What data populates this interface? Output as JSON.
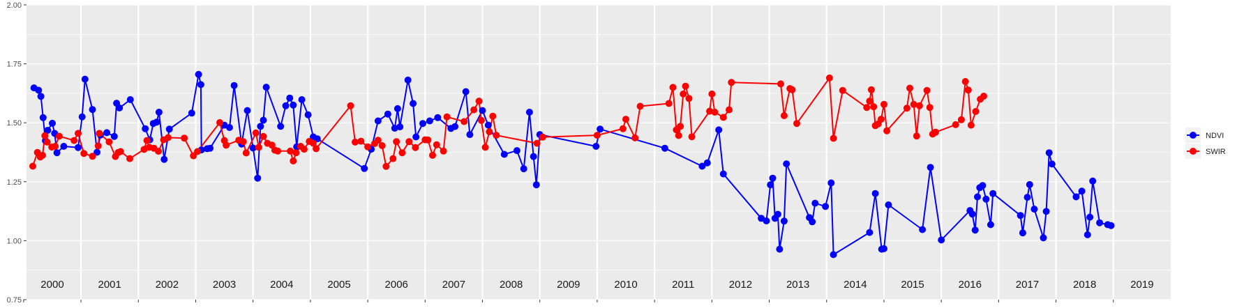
{
  "chart_data": {
    "type": "line",
    "title": "",
    "xlabel": "",
    "ylabel": "",
    "ylim": [
      0.75,
      2.0
    ],
    "y_ticks": [
      "0.75",
      "1.00",
      "1.25",
      "1.50",
      "1.75",
      "2.00"
    ],
    "years": [
      "2000",
      "2001",
      "2002",
      "2003",
      "2004",
      "2005",
      "2006",
      "2007",
      "2008",
      "2009",
      "2010",
      "2011",
      "2012",
      "2013",
      "2014",
      "2015",
      "2016",
      "2017",
      "2018",
      "2019"
    ],
    "x_range": [
      1999.55,
      2019.5
    ],
    "grid": true,
    "background": "#EBEBEB",
    "legend_position": "right",
    "series": [
      {
        "name": "NDVI",
        "color": "#0000FF",
        "points": [
          [
            1999.68,
            1.648
          ],
          [
            1999.76,
            1.638
          ],
          [
            1999.8,
            1.612
          ],
          [
            1999.84,
            1.522
          ],
          [
            1999.88,
            1.424
          ],
          [
            1999.92,
            1.468
          ],
          [
            2000.0,
            1.498
          ],
          [
            2000.04,
            1.455
          ],
          [
            2000.08,
            1.373
          ],
          [
            2000.2,
            1.4
          ],
          [
            2000.45,
            1.395
          ],
          [
            2000.52,
            1.525
          ],
          [
            2000.57,
            1.685
          ],
          [
            2000.7,
            1.556
          ],
          [
            2000.78,
            1.375
          ],
          [
            2000.84,
            1.448
          ],
          [
            2000.95,
            1.458
          ],
          [
            2001.08,
            1.442
          ],
          [
            2001.12,
            1.583
          ],
          [
            2001.17,
            1.563
          ],
          [
            2001.36,
            1.598
          ],
          [
            2001.62,
            1.475
          ],
          [
            2001.7,
            1.428
          ],
          [
            2001.76,
            1.497
          ],
          [
            2001.82,
            1.503
          ],
          [
            2001.86,
            1.545
          ],
          [
            2001.95,
            1.345
          ],
          [
            2002.04,
            1.473
          ],
          [
            2002.43,
            1.541
          ],
          [
            2002.55,
            1.705
          ],
          [
            2002.59,
            1.662
          ],
          [
            2002.6,
            1.385
          ],
          [
            2002.7,
            1.39
          ],
          [
            2002.75,
            1.392
          ],
          [
            2003.0,
            1.49
          ],
          [
            2003.09,
            1.48
          ],
          [
            2003.17,
            1.658
          ],
          [
            2003.3,
            1.41
          ],
          [
            2003.4,
            1.552
          ],
          [
            2003.5,
            1.393
          ],
          [
            2003.58,
            1.265
          ],
          [
            2003.63,
            1.485
          ],
          [
            2003.68,
            1.511
          ],
          [
            2003.73,
            1.651
          ],
          [
            2003.98,
            1.485
          ],
          [
            2004.07,
            1.572
          ],
          [
            2004.14,
            1.605
          ],
          [
            2004.2,
            1.575
          ],
          [
            2004.26,
            1.398
          ],
          [
            2004.35,
            1.598
          ],
          [
            2004.46,
            1.534
          ],
          [
            2004.55,
            1.44
          ],
          [
            2004.62,
            1.432
          ],
          [
            2005.44,
            1.306
          ],
          [
            2005.56,
            1.388
          ],
          [
            2005.68,
            1.508
          ],
          [
            2005.85,
            1.537
          ],
          [
            2005.97,
            1.477
          ],
          [
            2006.02,
            1.56
          ],
          [
            2006.06,
            1.483
          ],
          [
            2006.2,
            1.681
          ],
          [
            2006.29,
            1.582
          ],
          [
            2006.34,
            1.44
          ],
          [
            2006.46,
            1.497
          ],
          [
            2006.58,
            1.508
          ],
          [
            2006.72,
            1.522
          ],
          [
            2006.95,
            1.476
          ],
          [
            2007.02,
            1.484
          ],
          [
            2007.21,
            1.632
          ],
          [
            2007.28,
            1.45
          ],
          [
            2007.5,
            1.552
          ],
          [
            2007.6,
            1.49
          ],
          [
            2007.88,
            1.366
          ],
          [
            2008.1,
            1.382
          ],
          [
            2008.22,
            1.305
          ],
          [
            2008.32,
            1.545
          ],
          [
            2008.39,
            1.357
          ],
          [
            2008.44,
            1.237
          ],
          [
            2008.5,
            1.45
          ],
          [
            2009.48,
            1.4
          ],
          [
            2009.55,
            1.473
          ],
          [
            2010.68,
            1.392
          ],
          [
            2011.33,
            1.316
          ],
          [
            2011.42,
            1.33
          ],
          [
            2011.62,
            1.47
          ],
          [
            2011.7,
            1.283
          ],
          [
            2012.36,
            1.095
          ],
          [
            2012.45,
            1.084
          ],
          [
            2012.52,
            1.237
          ],
          [
            2012.56,
            1.265
          ],
          [
            2012.6,
            1.095
          ],
          [
            2012.65,
            1.112
          ],
          [
            2012.68,
            0.964
          ],
          [
            2012.76,
            1.083
          ],
          [
            2012.8,
            1.326
          ],
          [
            2013.2,
            1.098
          ],
          [
            2013.25,
            1.08
          ],
          [
            2013.3,
            1.159
          ],
          [
            2013.48,
            1.145
          ],
          [
            2013.58,
            1.245
          ],
          [
            2013.62,
            0.941
          ],
          [
            2014.25,
            1.035
          ],
          [
            2014.35,
            1.2
          ],
          [
            2014.46,
            0.964
          ],
          [
            2014.5,
            0.966
          ],
          [
            2014.58,
            1.152
          ],
          [
            2015.17,
            1.047
          ],
          [
            2015.31,
            1.311
          ],
          [
            2015.5,
            1.003
          ],
          [
            2016.0,
            1.128
          ],
          [
            2016.04,
            1.113
          ],
          [
            2016.09,
            1.045
          ],
          [
            2016.13,
            1.186
          ],
          [
            2016.17,
            1.225
          ],
          [
            2016.22,
            1.234
          ],
          [
            2016.28,
            1.176
          ],
          [
            2016.36,
            1.068
          ],
          [
            2016.4,
            1.2
          ],
          [
            2016.88,
            1.107
          ],
          [
            2016.92,
            1.033
          ],
          [
            2017.0,
            1.184
          ],
          [
            2017.04,
            1.238
          ],
          [
            2017.12,
            1.134
          ],
          [
            2017.28,
            1.012
          ],
          [
            2017.33,
            1.124
          ],
          [
            2017.38,
            1.373
          ],
          [
            2017.43,
            1.325
          ],
          [
            2017.85,
            1.186
          ],
          [
            2017.95,
            1.21
          ],
          [
            2018.05,
            1.025
          ],
          [
            2018.09,
            1.1
          ],
          [
            2018.14,
            1.253
          ],
          [
            2018.26,
            1.076
          ],
          [
            2018.4,
            1.068
          ],
          [
            2018.46,
            1.064
          ]
        ]
      },
      {
        "name": "SWIR",
        "color": "#FF0000",
        "points": [
          [
            1999.66,
            1.316
          ],
          [
            1999.74,
            1.374
          ],
          [
            1999.79,
            1.355
          ],
          [
            1999.83,
            1.362
          ],
          [
            1999.87,
            1.445
          ],
          [
            1999.91,
            1.418
          ],
          [
            1999.99,
            1.397
          ],
          [
            2000.05,
            1.4
          ],
          [
            2000.12,
            1.443
          ],
          [
            2000.38,
            1.425
          ],
          [
            2000.45,
            1.455
          ],
          [
            2000.55,
            1.37
          ],
          [
            2000.7,
            1.358
          ],
          [
            2000.8,
            1.402
          ],
          [
            2000.82,
            1.455
          ],
          [
            2000.99,
            1.419
          ],
          [
            2001.1,
            1.357
          ],
          [
            2001.15,
            1.374
          ],
          [
            2001.19,
            1.378
          ],
          [
            2001.35,
            1.348
          ],
          [
            2001.6,
            1.387
          ],
          [
            2001.65,
            1.425
          ],
          [
            2001.69,
            1.396
          ],
          [
            2001.77,
            1.392
          ],
          [
            2001.85,
            1.379
          ],
          [
            2001.94,
            1.428
          ],
          [
            2002.02,
            1.437
          ],
          [
            2002.3,
            1.435
          ],
          [
            2002.46,
            1.36
          ],
          [
            2002.53,
            1.378
          ],
          [
            2002.92,
            1.501
          ],
          [
            2003.0,
            1.425
          ],
          [
            2003.03,
            1.405
          ],
          [
            2003.25,
            1.426
          ],
          [
            2003.33,
            1.42
          ],
          [
            2003.38,
            1.372
          ],
          [
            2003.55,
            1.457
          ],
          [
            2003.6,
            1.396
          ],
          [
            2003.68,
            1.442
          ],
          [
            2003.75,
            1.413
          ],
          [
            2003.83,
            1.405
          ],
          [
            2003.88,
            1.384
          ],
          [
            2003.93,
            1.38
          ],
          [
            2004.15,
            1.38
          ],
          [
            2004.2,
            1.338
          ],
          [
            2004.25,
            1.373
          ],
          [
            2004.33,
            1.4
          ],
          [
            2004.39,
            1.388
          ],
          [
            2004.48,
            1.421
          ],
          [
            2004.55,
            1.413
          ],
          [
            2004.6,
            1.39
          ],
          [
            2005.2,
            1.572
          ],
          [
            2005.28,
            1.418
          ],
          [
            2005.38,
            1.422
          ],
          [
            2005.5,
            1.398
          ],
          [
            2005.62,
            1.412
          ],
          [
            2005.68,
            1.426
          ],
          [
            2005.75,
            1.403
          ],
          [
            2005.82,
            1.315
          ],
          [
            2005.94,
            1.348
          ],
          [
            2006.0,
            1.42
          ],
          [
            2006.1,
            1.373
          ],
          [
            2006.22,
            1.42
          ],
          [
            2006.33,
            1.395
          ],
          [
            2006.5,
            1.428
          ],
          [
            2006.55,
            1.427
          ],
          [
            2006.63,
            1.362
          ],
          [
            2006.7,
            1.407
          ],
          [
            2006.82,
            1.38
          ],
          [
            2006.88,
            1.525
          ],
          [
            2007.18,
            1.505
          ],
          [
            2007.35,
            1.555
          ],
          [
            2007.44,
            1.592
          ],
          [
            2007.48,
            1.51
          ],
          [
            2007.55,
            1.396
          ],
          [
            2007.62,
            1.462
          ],
          [
            2007.68,
            1.528
          ],
          [
            2007.74,
            1.447
          ],
          [
            2008.45,
            1.413
          ],
          [
            2008.55,
            1.439
          ],
          [
            2009.5,
            1.447
          ],
          [
            2009.95,
            1.475
          ],
          [
            2010.0,
            1.515
          ],
          [
            2010.16,
            1.436
          ],
          [
            2010.25,
            1.57
          ],
          [
            2010.75,
            1.582
          ],
          [
            2010.82,
            1.65
          ],
          [
            2010.88,
            1.47
          ],
          [
            2010.92,
            1.446
          ],
          [
            2010.95,
            1.485
          ],
          [
            2011.0,
            1.622
          ],
          [
            2011.04,
            1.655
          ],
          [
            2011.1,
            1.603
          ],
          [
            2011.15,
            1.441
          ],
          [
            2011.46,
            1.549
          ],
          [
            2011.5,
            1.622
          ],
          [
            2011.55,
            1.545
          ],
          [
            2011.7,
            1.523
          ],
          [
            2011.8,
            1.555
          ],
          [
            2011.84,
            1.671
          ],
          [
            2012.7,
            1.665
          ],
          [
            2012.76,
            1.53
          ],
          [
            2012.86,
            1.645
          ],
          [
            2012.9,
            1.64
          ],
          [
            2012.98,
            1.497
          ],
          [
            2013.55,
            1.69
          ],
          [
            2013.62,
            1.434
          ],
          [
            2013.78,
            1.637
          ],
          [
            2014.2,
            1.565
          ],
          [
            2014.25,
            1.592
          ],
          [
            2014.28,
            1.64
          ],
          [
            2014.32,
            1.568
          ],
          [
            2014.35,
            1.488
          ],
          [
            2014.4,
            1.495
          ],
          [
            2014.45,
            1.515
          ],
          [
            2014.5,
            1.578
          ],
          [
            2014.55,
            1.466
          ],
          [
            2014.9,
            1.562
          ],
          [
            2014.95,
            1.647
          ],
          [
            2015.02,
            1.578
          ],
          [
            2015.07,
            1.444
          ],
          [
            2015.12,
            1.572
          ],
          [
            2015.25,
            1.637
          ],
          [
            2015.3,
            1.565
          ],
          [
            2015.35,
            1.452
          ],
          [
            2015.4,
            1.46
          ],
          [
            2015.75,
            1.492
          ],
          [
            2015.85,
            1.513
          ],
          [
            2015.92,
            1.675
          ],
          [
            2015.97,
            1.639
          ],
          [
            2016.02,
            1.49
          ],
          [
            2016.1,
            1.548
          ],
          [
            2016.18,
            1.6
          ],
          [
            2016.24,
            1.613
          ]
        ]
      }
    ]
  }
}
